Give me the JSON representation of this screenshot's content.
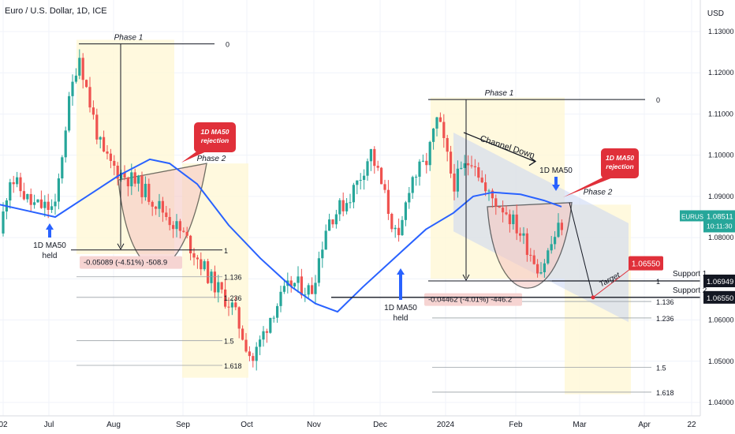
{
  "chart_title": "Euro / U.S. Dollar, 1D, ICE",
  "currency": "USD",
  "symbol_label": "EURUSD",
  "price_tag": "1.08511",
  "countdown": "10:11:30",
  "chart_data": {
    "type": "candlestick",
    "y_ticks": [
      "1.13000",
      "1.12000",
      "1.11000",
      "1.10000",
      "1.09000",
      "1.08000",
      "1.07000",
      "1.06000",
      "1.05000",
      "1.04000"
    ],
    "x_ticks": [
      "02",
      "Jul",
      "Aug",
      "Sep",
      "Oct",
      "Nov",
      "Dec",
      "2024",
      "Feb",
      "Mar",
      "Apr",
      "22"
    ],
    "ylim": [
      1.035,
      1.135
    ],
    "grid": true,
    "horizontal_levels": [
      {
        "label": "Support 1",
        "price": 1.06949,
        "tag": "1.06949"
      },
      {
        "label": "Support 2",
        "price": 1.0655,
        "tag": "1.06550"
      }
    ],
    "target": {
      "label": "Target",
      "price": 1.0655,
      "tag": "1.06550"
    },
    "fib_left": {
      "levels": [
        "0",
        "1",
        "1.136",
        "1.236",
        "1.5",
        "1.618"
      ],
      "phase1": "Phase 1",
      "phase2": "Phase 2",
      "measure": "-0.05089 (-4.51%) -508.9"
    },
    "fib_right": {
      "levels": [
        "0",
        "1",
        "1.136",
        "1.236",
        "1.5",
        "1.618"
      ],
      "phase1": "Phase 1",
      "phase2": "Phase 2",
      "measure": "-0.04462 (-4.01%) -446.2"
    },
    "annotations": {
      "ma_rejection_1": [
        "1D MA50",
        "rejection"
      ],
      "ma_rejection_2": [
        "1D MA50",
        "rejection"
      ],
      "ma_held_1": [
        "1D MA50",
        "held"
      ],
      "ma_held_2": [
        "1D MA50",
        "held"
      ],
      "ma_label": "1D MA50",
      "channel": "Channel Down"
    }
  },
  "colors": {
    "up": "#26a69a",
    "down": "#ef5350",
    "ma": "#2962ff",
    "phase_box": "#fff7d6",
    "bowl": "#f6c9c4",
    "channel": "#c9d6f3",
    "label_red": "#e0303a"
  }
}
